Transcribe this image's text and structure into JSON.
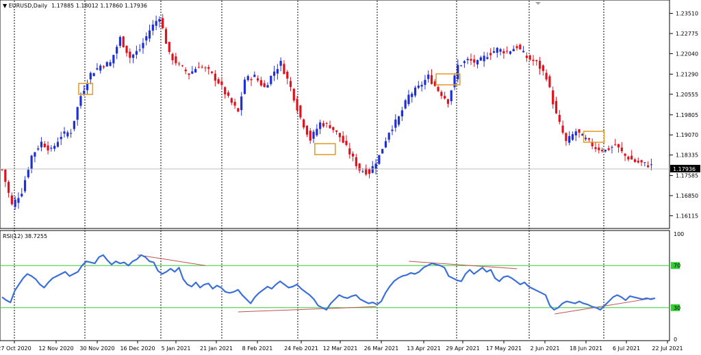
{
  "header": {
    "symbol": "EURUSD,Daily",
    "ohlc": "1.17885 1.18012 1.17860 1.17936"
  },
  "rsi_header": "RSI(12) 38.7255",
  "chart_data": [
    {
      "type": "candlestick",
      "title": "",
      "y_axis": {
        "min": 1.1575,
        "max": 1.2385,
        "ticks": [
          "1.23510",
          "1.22775",
          "1.22040",
          "1.21290",
          "1.20555",
          "1.19805",
          "1.19070",
          "1.18335",
          "1.17585",
          "1.16850",
          "1.16115"
        ]
      },
      "current_price": "1.17936",
      "x_labels": [
        "27 Oct 2020",
        "12 Nov 2020",
        "30 Nov 2020",
        "16 Dec 2020",
        "5 Jan 2021",
        "21 Jan 2021",
        "8 Feb 2021",
        "24 Feb 2021",
        "12 Mar 2021",
        "26 Mar 2021",
        "13 Apr 2021",
        "29 Apr 2021",
        "17 May 2021",
        "2 Jun 2021",
        "18 Jun 2021",
        "6 Jul 2021",
        "22 Jul 2021"
      ],
      "bull_color": "#1f2fd6",
      "bear_color": "#e0101c",
      "anchors": [
        [
          0,
          1.178
        ],
        [
          3,
          1.165
        ],
        [
          6,
          1.17
        ],
        [
          9,
          1.183
        ],
        [
          12,
          1.188
        ],
        [
          15,
          1.185
        ],
        [
          18,
          1.1905
        ],
        [
          21,
          1.192
        ],
        [
          24,
          1.205
        ],
        [
          27,
          1.213
        ],
        [
          30,
          1.216
        ],
        [
          33,
          1.217
        ],
        [
          36,
          1.226
        ],
        [
          39,
          1.219
        ],
        [
          42,
          1.222
        ],
        [
          45,
          1.229
        ],
        [
          48,
          1.234
        ],
        [
          51,
          1.22
        ],
        [
          54,
          1.216
        ],
        [
          57,
          1.213
        ],
        [
          60,
          1.216
        ],
        [
          63,
          1.214
        ],
        [
          66,
          1.21
        ],
        [
          69,
          1.204
        ],
        [
          72,
          1.199
        ],
        [
          74,
          1.211
        ],
        [
          77,
          1.212
        ],
        [
          80,
          1.208
        ],
        [
          83,
          1.214
        ],
        [
          85,
          1.217
        ],
        [
          88,
          1.208
        ],
        [
          91,
          1.197
        ],
        [
          94,
          1.189
        ],
        [
          97,
          1.195
        ],
        [
          100,
          1.194
        ],
        [
          103,
          1.19
        ],
        [
          106,
          1.184
        ],
        [
          109,
          1.178
        ],
        [
          112,
          1.177
        ],
        [
          115,
          1.183
        ],
        [
          118,
          1.192
        ],
        [
          121,
          1.197
        ],
        [
          124,
          1.205
        ],
        [
          127,
          1.208
        ],
        [
          130,
          1.212
        ],
        [
          133,
          1.207
        ],
        [
          136,
          1.203
        ],
        [
          139,
          1.216
        ],
        [
          142,
          1.218
        ],
        [
          145,
          1.217
        ],
        [
          148,
          1.22
        ],
        [
          151,
          1.222
        ],
        [
          154,
          1.221
        ],
        [
          157,
          1.223
        ],
        [
          160,
          1.219
        ],
        [
          163,
          1.217
        ],
        [
          166,
          1.212
        ],
        [
          169,
          1.198
        ],
        [
          172,
          1.188
        ],
        [
          175,
          1.192
        ],
        [
          178,
          1.189
        ],
        [
          181,
          1.186
        ],
        [
          184,
          1.185
        ],
        [
          187,
          1.187
        ],
        [
          190,
          1.183
        ],
        [
          193,
          1.181
        ],
        [
          196,
          1.18
        ],
        [
          198,
          1.1794
        ]
      ],
      "boxes": [
        {
          "start": 24,
          "end": 27,
          "low": 1.2055,
          "high": 1.2095
        },
        {
          "start": 96,
          "end": 101,
          "low": 1.1835,
          "high": 1.1875
        },
        {
          "start": 133,
          "end": 139,
          "low": 1.209,
          "high": 1.213
        },
        {
          "start": 178,
          "end": 183,
          "low": 1.188,
          "high": 1.192
        }
      ]
    },
    {
      "type": "line",
      "title": "",
      "series_name": "",
      "y_axis": {
        "min": 0,
        "max": 100,
        "ticks": [
          "100",
          "70",
          "30",
          "0"
        ]
      },
      "levels": [
        70,
        30
      ],
      "level_color": "#33cc33",
      "line_color": "#3a6fd8",
      "values": [
        40,
        37,
        35,
        46,
        52,
        58,
        62,
        60,
        57,
        52,
        49,
        54,
        58,
        60,
        62,
        64,
        60,
        62,
        64,
        70,
        74,
        73,
        72,
        78,
        80,
        75,
        71,
        74,
        72,
        73,
        70,
        74,
        76,
        80,
        78,
        74,
        73,
        65,
        62,
        64,
        67,
        64,
        68,
        57,
        52,
        50,
        54,
        49,
        52,
        53,
        48,
        51,
        49,
        45,
        44,
        45,
        47,
        42,
        38,
        34,
        40,
        44,
        47,
        50,
        48,
        52,
        55,
        52,
        49,
        50,
        52,
        48,
        45,
        42,
        38,
        32,
        30,
        28,
        34,
        38,
        42,
        40,
        39,
        41,
        42,
        38,
        36,
        34,
        35,
        33,
        36,
        44,
        50,
        55,
        58,
        60,
        61,
        63,
        62,
        64,
        68,
        70,
        72,
        71,
        70,
        68,
        60,
        58,
        56,
        55,
        62,
        66,
        62,
        65,
        68,
        64,
        66,
        58,
        55,
        59,
        60,
        58,
        55,
        52,
        54,
        50,
        48,
        46,
        44,
        42,
        32,
        28,
        30,
        34,
        36,
        35,
        34,
        36,
        34,
        33,
        31,
        30,
        28,
        32,
        36,
        40,
        42,
        40,
        37,
        41,
        40,
        39,
        38,
        39,
        38,
        39
      ],
      "divergences": [
        {
          "from": [
            54,
            80
          ],
          "to": [
            81,
            70
          ]
        },
        {
          "from": [
            162,
            74
          ],
          "to": [
            205,
            67
          ]
        },
        {
          "from": [
            94,
            26
          ],
          "to": [
            149,
            31
          ]
        },
        {
          "from": [
            220,
            24
          ],
          "to": [
            259,
            39
          ]
        }
      ]
    }
  ]
}
